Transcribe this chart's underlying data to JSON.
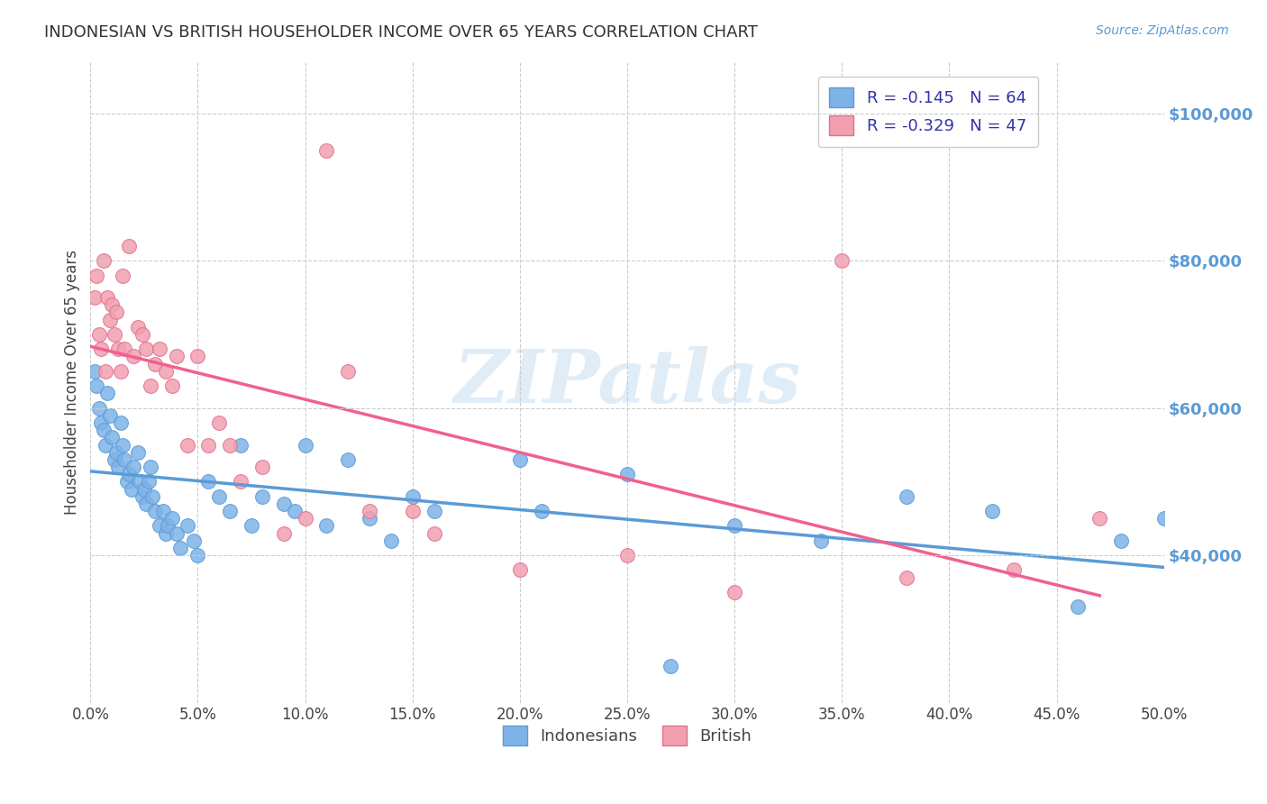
{
  "title": "INDONESIAN VS BRITISH HOUSEHOLDER INCOME OVER 65 YEARS CORRELATION CHART",
  "source": "Source: ZipAtlas.com",
  "ylabel": "Householder Income Over 65 years",
  "yticks": [
    40000,
    60000,
    80000,
    100000
  ],
  "ytick_labels": [
    "$40,000",
    "$60,000",
    "$80,000",
    "$100,000"
  ],
  "xlim": [
    0.0,
    0.5
  ],
  "ylim": [
    20000,
    107000
  ],
  "legend_label1": "R = -0.145   N = 64",
  "legend_label2": "R = -0.329   N = 47",
  "legend_label1_bottom": "Indonesians",
  "legend_label2_bottom": "British",
  "color_indonesian": "#7EB3E8",
  "color_british": "#F2A0B0",
  "color_indonesian_line": "#5B9BD5",
  "color_british_line": "#F06090",
  "watermark": "ZIPatlas",
  "indonesian_x": [
    0.002,
    0.003,
    0.004,
    0.005,
    0.006,
    0.007,
    0.008,
    0.009,
    0.01,
    0.011,
    0.012,
    0.013,
    0.014,
    0.015,
    0.016,
    0.017,
    0.018,
    0.019,
    0.02,
    0.022,
    0.023,
    0.024,
    0.025,
    0.026,
    0.027,
    0.028,
    0.029,
    0.03,
    0.032,
    0.034,
    0.035,
    0.036,
    0.038,
    0.04,
    0.042,
    0.045,
    0.048,
    0.05,
    0.055,
    0.06,
    0.065,
    0.07,
    0.075,
    0.08,
    0.09,
    0.095,
    0.1,
    0.11,
    0.12,
    0.13,
    0.14,
    0.15,
    0.16,
    0.2,
    0.21,
    0.25,
    0.27,
    0.3,
    0.34,
    0.38,
    0.42,
    0.46,
    0.48,
    0.5
  ],
  "indonesian_y": [
    65000,
    63000,
    60000,
    58000,
    57000,
    55000,
    62000,
    59000,
    56000,
    53000,
    54000,
    52000,
    58000,
    55000,
    53000,
    50000,
    51000,
    49000,
    52000,
    54000,
    50000,
    48000,
    49000,
    47000,
    50000,
    52000,
    48000,
    46000,
    44000,
    46000,
    43000,
    44000,
    45000,
    43000,
    41000,
    44000,
    42000,
    40000,
    50000,
    48000,
    46000,
    55000,
    44000,
    48000,
    47000,
    46000,
    55000,
    44000,
    53000,
    45000,
    42000,
    48000,
    46000,
    53000,
    46000,
    51000,
    25000,
    44000,
    42000,
    48000,
    46000,
    33000,
    42000,
    45000
  ],
  "british_x": [
    0.002,
    0.003,
    0.004,
    0.005,
    0.006,
    0.007,
    0.008,
    0.009,
    0.01,
    0.011,
    0.012,
    0.013,
    0.014,
    0.015,
    0.016,
    0.018,
    0.02,
    0.022,
    0.024,
    0.026,
    0.028,
    0.03,
    0.032,
    0.035,
    0.038,
    0.04,
    0.045,
    0.05,
    0.055,
    0.06,
    0.065,
    0.07,
    0.08,
    0.09,
    0.1,
    0.11,
    0.12,
    0.13,
    0.15,
    0.16,
    0.2,
    0.25,
    0.3,
    0.35,
    0.38,
    0.43,
    0.47
  ],
  "british_y": [
    75000,
    78000,
    70000,
    68000,
    80000,
    65000,
    75000,
    72000,
    74000,
    70000,
    73000,
    68000,
    65000,
    78000,
    68000,
    82000,
    67000,
    71000,
    70000,
    68000,
    63000,
    66000,
    68000,
    65000,
    63000,
    67000,
    55000,
    67000,
    55000,
    58000,
    55000,
    50000,
    52000,
    43000,
    45000,
    95000,
    65000,
    46000,
    46000,
    43000,
    38000,
    40000,
    35000,
    80000,
    37000,
    38000,
    45000
  ]
}
